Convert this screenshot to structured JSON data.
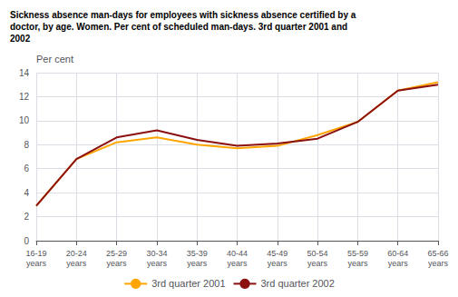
{
  "chart_data": {
    "type": "line",
    "title": "Sickness absence man-days for employees with sickness absence certified by a\ndoctor, by age. Women. Per cent of scheduled man-days. 3rd quarter 2001 and\n2002",
    "ylabel": "Per cent",
    "categories": [
      "16-19\nyears",
      "20-24\nyears",
      "25-29\nyears",
      "30-34\nyears",
      "35-39\nyears",
      "40-44\nyears",
      "45-49\nyears",
      "50-54\nyears",
      "55-59\nyears",
      "60-64\nyears",
      "65-66\nyears"
    ],
    "series": [
      {
        "name": "3rd quarter 2001",
        "color": "#FFA500",
        "values": [
          2.9,
          6.8,
          8.2,
          8.6,
          8.0,
          7.7,
          7.9,
          8.8,
          9.9,
          12.5,
          13.2
        ]
      },
      {
        "name": "3rd quarter 2002",
        "color": "#8B1010",
        "values": [
          2.9,
          6.8,
          8.6,
          9.2,
          8.4,
          7.9,
          8.1,
          8.5,
          9.9,
          12.5,
          13.0
        ]
      }
    ],
    "ylim": [
      0,
      14
    ],
    "yticks": [
      0,
      2,
      4,
      6,
      8,
      10,
      12,
      14
    ],
    "grid": true,
    "legend": "bottom"
  }
}
